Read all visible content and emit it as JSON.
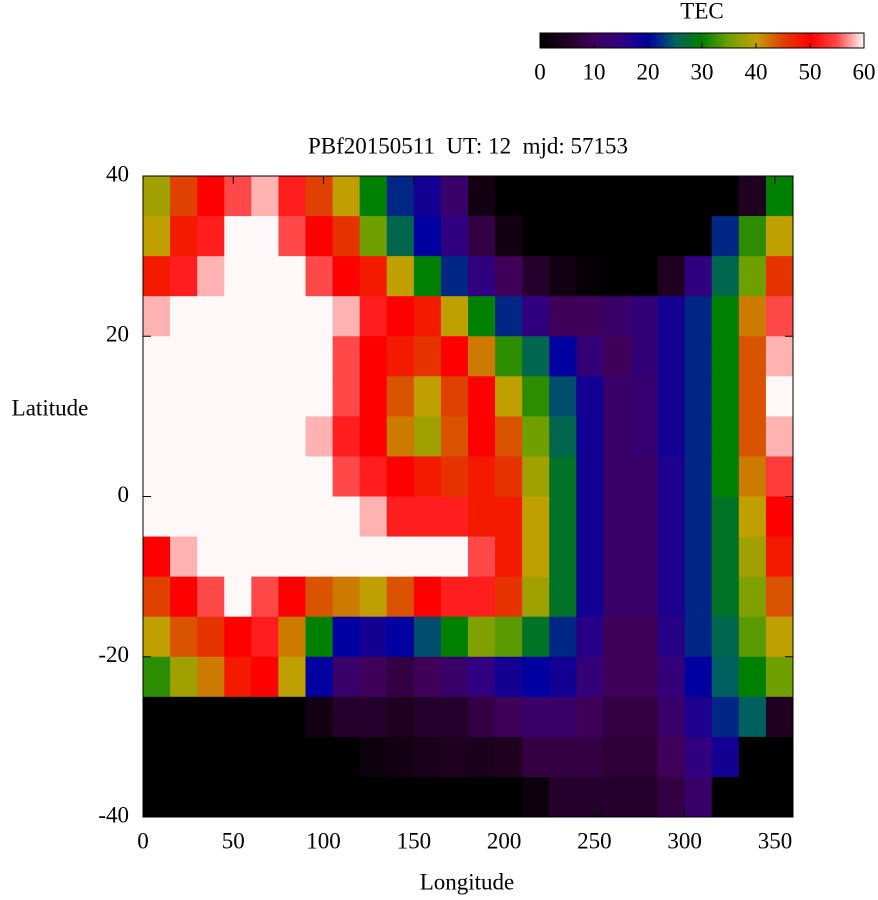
{
  "chart_data": {
    "type": "heatmap",
    "title": "PBf20150511  UT: 12  mjd: 57153",
    "x_label": "Longitude",
    "y_label": "Latitude",
    "xlim": [
      0,
      360
    ],
    "ylim": [
      -40,
      40
    ],
    "xticks": [
      0,
      50,
      100,
      150,
      200,
      250,
      300,
      350
    ],
    "yticks": [
      -40,
      -20,
      0,
      20,
      40
    ],
    "lon": [
      7.5,
      22.5,
      37.5,
      52.5,
      67.5,
      82.5,
      97.5,
      112.5,
      127.5,
      142.5,
      157.5,
      172.5,
      187.5,
      202.5,
      217.5,
      232.5,
      247.5,
      262.5,
      277.5,
      292.5,
      307.5,
      322.5,
      337.5,
      352.5
    ],
    "lat": [
      37.5,
      32.5,
      27.5,
      22.5,
      17.5,
      12.5,
      7.5,
      2.5,
      -2.5,
      -7.5,
      -12.5,
      -17.5,
      -22.5,
      -27.5,
      -32.5,
      -37.5
    ],
    "z": [
      [
        38,
        45,
        50,
        55,
        58,
        52,
        45,
        40,
        30,
        22,
        18,
        12,
        3,
        0,
        0,
        0,
        0,
        0,
        0,
        0,
        0,
        0,
        5,
        30
      ],
      [
        40,
        48,
        52,
        60,
        60,
        55,
        50,
        46,
        35,
        26,
        20,
        15,
        8,
        3,
        0,
        0,
        0,
        0,
        0,
        0,
        0,
        22,
        32,
        40
      ],
      [
        48,
        52,
        58,
        60,
        60,
        60,
        55,
        50,
        48,
        40,
        30,
        22,
        15,
        10,
        6,
        3,
        1,
        0,
        0,
        5,
        15,
        26,
        35,
        46
      ],
      [
        58,
        60,
        60,
        60,
        60,
        60,
        60,
        58,
        52,
        50,
        48,
        40,
        30,
        22,
        15,
        10,
        10,
        12,
        14,
        18,
        22,
        30,
        42,
        55
      ],
      [
        60,
        60,
        60,
        60,
        60,
        60,
        60,
        55,
        50,
        48,
        46,
        50,
        42,
        32,
        26,
        20,
        14,
        10,
        14,
        18,
        22,
        30,
        44,
        58
      ],
      [
        60,
        60,
        60,
        60,
        60,
        60,
        60,
        55,
        50,
        44,
        40,
        45,
        50,
        40,
        32,
        24,
        18,
        12,
        13,
        18,
        22,
        30,
        44,
        60
      ],
      [
        60,
        60,
        60,
        60,
        60,
        60,
        58,
        52,
        50,
        42,
        38,
        44,
        50,
        44,
        35,
        26,
        18,
        12,
        13,
        18,
        22,
        30,
        44,
        58
      ],
      [
        60,
        60,
        60,
        60,
        60,
        60,
        60,
        55,
        52,
        50,
        48,
        46,
        48,
        46,
        38,
        28,
        18,
        12,
        12,
        17,
        22,
        30,
        42,
        54
      ],
      [
        60,
        60,
        60,
        60,
        60,
        60,
        60,
        60,
        58,
        52,
        52,
        52,
        48,
        48,
        40,
        28,
        18,
        12,
        12,
        17,
        22,
        28,
        40,
        50
      ],
      [
        50,
        58,
        60,
        60,
        60,
        60,
        60,
        60,
        60,
        60,
        60,
        60,
        55,
        48,
        40,
        28,
        18,
        12,
        12,
        17,
        22,
        28,
        38,
        48
      ],
      [
        45,
        50,
        55,
        60,
        55,
        50,
        44,
        42,
        40,
        44,
        50,
        52,
        52,
        46,
        38,
        28,
        18,
        12,
        12,
        17,
        22,
        28,
        36,
        44
      ],
      [
        40,
        44,
        46,
        50,
        52,
        42,
        30,
        20,
        18,
        20,
        24,
        30,
        36,
        34,
        28,
        22,
        16,
        10,
        10,
        16,
        22,
        26,
        34,
        40
      ],
      [
        32,
        38,
        42,
        48,
        50,
        40,
        20,
        12,
        10,
        8,
        10,
        12,
        15,
        18,
        20,
        18,
        14,
        10,
        10,
        14,
        20,
        25,
        30,
        35
      ],
      [
        0,
        0,
        0,
        0,
        0,
        0,
        3,
        6,
        6,
        5,
        6,
        6,
        8,
        10,
        12,
        12,
        10,
        8,
        8,
        12,
        17,
        22,
        25,
        5
      ],
      [
        0,
        0,
        0,
        0,
        0,
        0,
        0,
        0,
        2,
        3,
        4,
        5,
        4,
        5,
        8,
        8,
        8,
        7,
        7,
        10,
        15,
        18,
        0,
        0
      ],
      [
        0,
        0,
        0,
        0,
        0,
        0,
        0,
        0,
        0,
        0,
        0,
        0,
        0,
        0,
        2,
        6,
        6,
        6,
        6,
        8,
        12,
        0,
        0,
        0
      ]
    ],
    "colorbar": {
      "title": "TEC",
      "lim": [
        0,
        60
      ],
      "ticks": [
        0,
        10,
        20,
        30,
        40,
        50,
        60
      ]
    },
    "colorscale": [
      [
        0,
        "#000000"
      ],
      [
        5,
        "#200020"
      ],
      [
        10,
        "#40005a"
      ],
      [
        15,
        "#300080"
      ],
      [
        20,
        "#0000a0"
      ],
      [
        25,
        "#006060"
      ],
      [
        30,
        "#008000"
      ],
      [
        35,
        "#70a000"
      ],
      [
        40,
        "#c0a000"
      ],
      [
        45,
        "#e04000"
      ],
      [
        50,
        "#ff0000"
      ],
      [
        55,
        "#ff4848"
      ],
      [
        60,
        "#fff8f8"
      ]
    ]
  }
}
